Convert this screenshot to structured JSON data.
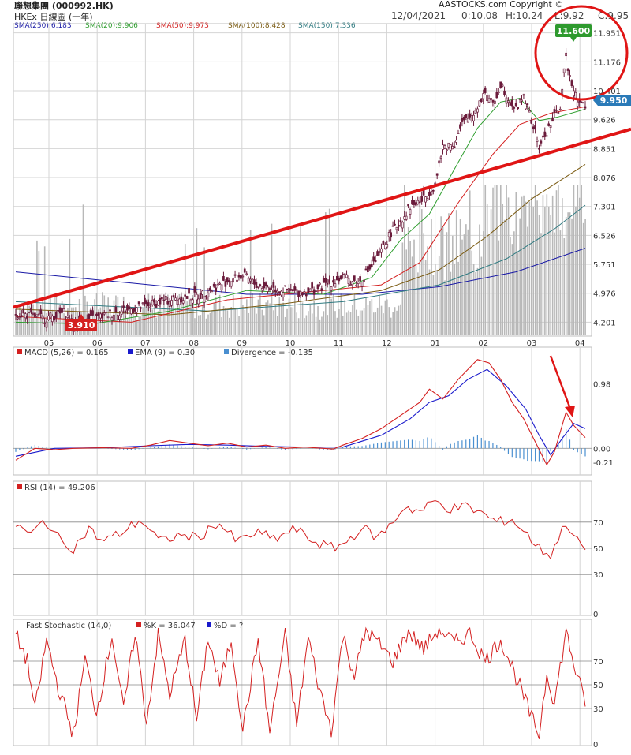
{
  "header": {
    "title": "聯想集團 (000992.HK)",
    "subtitle": "HKEx 日線圖 (一年)",
    "brand": "AASTOCKS.com Copyright ©",
    "date": "12/04/2021",
    "time": "0:10.08",
    "high": "H:10.24",
    "low": "L:9.92",
    "close": "C:9.95"
  },
  "colors": {
    "candle": "#6b1b3b",
    "sma250": "#1a1aa6",
    "sma20": "#2e9e2e",
    "sma50": "#d42020",
    "sma100": "#7a5a10",
    "sma150": "#2e7a80",
    "annotation": "#e01515",
    "volume": "#b8b8b8",
    "macd": "#d42020",
    "ema": "#1a1acc",
    "divergence": "#4a8fd0",
    "grid": "#d4d4d4",
    "badge_high": "#2e9a2e",
    "badge_low": "#d42020",
    "badge_last": "#2a7ab8"
  },
  "chart_data": [
    {
      "type": "candlestick",
      "legend": [
        {
          "label": "SMA(250):6.183",
          "color": "#1a1aa6"
        },
        {
          "label": "SMA(20):9.906",
          "color": "#2e9e2e"
        },
        {
          "label": "SMA(50):9.973",
          "color": "#d42020"
        },
        {
          "label": "SMA(100):8.428",
          "color": "#7a5a10"
        },
        {
          "label": "SMA(150):7.336",
          "color": "#2e7a80"
        }
      ],
      "y_ticks": [
        "11.951",
        "11.176",
        "10.401",
        "9.626",
        "8.851",
        "8.076",
        "7.301",
        "6.526",
        "5.751",
        "4.976",
        "4.201"
      ],
      "ylim": [
        3.85,
        12.05
      ],
      "x_ticks": [
        "05",
        "06",
        "07",
        "08",
        "09",
        "10",
        "11",
        "12",
        "01",
        "02",
        "03",
        "04"
      ],
      "close_path": [
        [
          0,
          4.45
        ],
        [
          15,
          4.3
        ],
        [
          25,
          4.45
        ],
        [
          30,
          4.12
        ],
        [
          40,
          4.3
        ],
        [
          55,
          4.5
        ],
        [
          65,
          4.6
        ],
        [
          75,
          4.75
        ],
        [
          85,
          4.85
        ],
        [
          95,
          4.9
        ],
        [
          110,
          5.3
        ],
        [
          118,
          5.45
        ],
        [
          125,
          5.2
        ],
        [
          135,
          5.1
        ],
        [
          145,
          5.0
        ],
        [
          155,
          5.05
        ],
        [
          165,
          5.3
        ],
        [
          170,
          5.4
        ],
        [
          178,
          5.25
        ],
        [
          188,
          5.9
        ],
        [
          195,
          6.6
        ],
        [
          200,
          6.9
        ],
        [
          205,
          7.3
        ],
        [
          212,
          7.5
        ],
        [
          218,
          7.9
        ],
        [
          222,
          8.9
        ],
        [
          228,
          9.0
        ],
        [
          232,
          9.5
        ],
        [
          238,
          9.8
        ],
        [
          244,
          10.4
        ],
        [
          248,
          10.0
        ],
        [
          252,
          10.6
        ],
        [
          256,
          10.2
        ],
        [
          260,
          9.9
        ],
        [
          264,
          10.3
        ],
        [
          268,
          9.6
        ],
        [
          272,
          8.9
        ],
        [
          276,
          9.3
        ],
        [
          280,
          9.7
        ],
        [
          283,
          10.0
        ],
        [
          286,
          11.3
        ],
        [
          288,
          10.8
        ],
        [
          292,
          10.2
        ],
        [
          296,
          9.95
        ]
      ],
      "sma20": [
        [
          0,
          4.2
        ],
        [
          40,
          4.15
        ],
        [
          80,
          4.5
        ],
        [
          120,
          5.05
        ],
        [
          160,
          4.95
        ],
        [
          185,
          5.4
        ],
        [
          200,
          6.4
        ],
        [
          215,
          7.1
        ],
        [
          228,
          8.3
        ],
        [
          240,
          9.4
        ],
        [
          252,
          10.1
        ],
        [
          262,
          10.2
        ],
        [
          272,
          9.6
        ],
        [
          282,
          9.7
        ],
        [
          296,
          9.906
        ]
      ],
      "sma50": [
        [
          0,
          4.35
        ],
        [
          60,
          4.2
        ],
        [
          110,
          4.8
        ],
        [
          160,
          5.05
        ],
        [
          190,
          5.2
        ],
        [
          210,
          5.8
        ],
        [
          230,
          7.4
        ],
        [
          248,
          8.7
        ],
        [
          262,
          9.5
        ],
        [
          278,
          9.8
        ],
        [
          296,
          9.973
        ]
      ],
      "sma100": [
        [
          0,
          4.55
        ],
        [
          80,
          4.4
        ],
        [
          140,
          4.7
        ],
        [
          190,
          5.05
        ],
        [
          220,
          5.6
        ],
        [
          245,
          6.5
        ],
        [
          268,
          7.5
        ],
        [
          296,
          8.428
        ]
      ],
      "sma150": [
        [
          0,
          4.75
        ],
        [
          100,
          4.5
        ],
        [
          170,
          4.75
        ],
        [
          220,
          5.2
        ],
        [
          255,
          5.9
        ],
        [
          280,
          6.7
        ],
        [
          296,
          7.336
        ]
      ],
      "sma250": [
        [
          0,
          5.55
        ],
        [
          60,
          5.25
        ],
        [
          120,
          4.95
        ],
        [
          180,
          4.95
        ],
        [
          220,
          5.15
        ],
        [
          260,
          5.55
        ],
        [
          296,
          6.183
        ]
      ],
      "trendline": [
        [
          0,
          4.6
        ],
        [
          296,
          8.95
        ]
      ],
      "badges": {
        "high": "11.600",
        "low": "3.910",
        "last": "9.950"
      },
      "annotations": {
        "circle_around_recent_high": true
      }
    },
    {
      "type": "line",
      "title": "MACD (5,26) = 0.165",
      "series": [
        {
          "name": "MACD (5,26) = 0.165",
          "color": "#d42020"
        },
        {
          "name": "EMA (9) = 0.30",
          "color": "#1a1acc"
        },
        {
          "name": "Divergence = -0.135",
          "color": "#4a8fd0"
        }
      ],
      "y_ticks": [
        "0.98",
        "0.00",
        "-0.21"
      ],
      "ylim": [
        -0.38,
        1.42
      ],
      "macd": [
        [
          0,
          -0.18
        ],
        [
          10,
          0.0
        ],
        [
          20,
          -0.02
        ],
        [
          30,
          0.0
        ],
        [
          45,
          0.01
        ],
        [
          60,
          0.0
        ],
        [
          70,
          0.05
        ],
        [
          80,
          0.12
        ],
        [
          90,
          0.08
        ],
        [
          100,
          0.04
        ],
        [
          110,
          0.08
        ],
        [
          120,
          0.02
        ],
        [
          130,
          0.05
        ],
        [
          140,
          0.0
        ],
        [
          150,
          0.02
        ],
        [
          165,
          -0.01
        ],
        [
          170,
          0.05
        ],
        [
          180,
          0.15
        ],
        [
          190,
          0.3
        ],
        [
          200,
          0.5
        ],
        [
          210,
          0.7
        ],
        [
          215,
          0.9
        ],
        [
          222,
          0.75
        ],
        [
          230,
          1.05
        ],
        [
          235,
          1.2
        ],
        [
          240,
          1.35
        ],
        [
          246,
          1.3
        ],
        [
          252,
          1.05
        ],
        [
          258,
          0.7
        ],
        [
          264,
          0.45
        ],
        [
          270,
          0.1
        ],
        [
          276,
          -0.25
        ],
        [
          280,
          -0.05
        ],
        [
          286,
          0.55
        ],
        [
          290,
          0.35
        ],
        [
          296,
          0.165
        ]
      ],
      "ema": [
        [
          0,
          -0.12
        ],
        [
          20,
          0.0
        ],
        [
          45,
          0.01
        ],
        [
          70,
          0.04
        ],
        [
          90,
          0.06
        ],
        [
          110,
          0.05
        ],
        [
          130,
          0.03
        ],
        [
          150,
          0.02
        ],
        [
          170,
          0.02
        ],
        [
          190,
          0.2
        ],
        [
          205,
          0.45
        ],
        [
          215,
          0.7
        ],
        [
          225,
          0.8
        ],
        [
          235,
          1.05
        ],
        [
          245,
          1.2
        ],
        [
          255,
          0.95
        ],
        [
          265,
          0.6
        ],
        [
          272,
          0.2
        ],
        [
          278,
          -0.1
        ],
        [
          284,
          0.15
        ],
        [
          290,
          0.38
        ],
        [
          296,
          0.3
        ]
      ],
      "divergence_markers": [
        {
          "x": 205,
          "value": 0.2
        },
        {
          "x": 215,
          "value": 0.25
        },
        {
          "x": 276,
          "value": -0.25
        },
        {
          "x": 286,
          "value": 0.3
        }
      ]
    },
    {
      "type": "line",
      "title": "RSI (14) = 49.206",
      "y_ticks": [
        "70",
        "50",
        "30",
        "0"
      ],
      "ylim": [
        0,
        100
      ],
      "values": [
        [
          0,
          68
        ],
        [
          8,
          60
        ],
        [
          15,
          72
        ],
        [
          22,
          58
        ],
        [
          30,
          50
        ],
        [
          38,
          65
        ],
        [
          45,
          55
        ],
        [
          55,
          62
        ],
        [
          65,
          72
        ],
        [
          75,
          55
        ],
        [
          85,
          60
        ],
        [
          95,
          58
        ],
        [
          105,
          70
        ],
        [
          115,
          55
        ],
        [
          125,
          62
        ],
        [
          135,
          57
        ],
        [
          145,
          65
        ],
        [
          155,
          55
        ],
        [
          165,
          50
        ],
        [
          172,
          55
        ],
        [
          180,
          66
        ],
        [
          188,
          58
        ],
        [
          196,
          70
        ],
        [
          202,
          82
        ],
        [
          210,
          78
        ],
        [
          218,
          86
        ],
        [
          226,
          80
        ],
        [
          234,
          82
        ],
        [
          242,
          77
        ],
        [
          250,
          70
        ],
        [
          258,
          72
        ],
        [
          266,
          60
        ],
        [
          272,
          50
        ],
        [
          278,
          45
        ],
        [
          286,
          70
        ],
        [
          292,
          55
        ],
        [
          296,
          49.2
        ]
      ]
    },
    {
      "type": "line",
      "title": "Fast Stochastic (14,0)",
      "series": [
        {
          "name": "%K = 36.047",
          "color": "#d42020"
        },
        {
          "name": "%D = ?",
          "color": "#1a1acc"
        }
      ],
      "y_ticks": [
        "70",
        "50",
        "30",
        "0"
      ],
      "ylim": [
        0,
        100
      ],
      "values": [
        [
          0,
          92
        ],
        [
          6,
          70
        ],
        [
          10,
          28
        ],
        [
          16,
          88
        ],
        [
          22,
          48
        ],
        [
          30,
          8
        ],
        [
          36,
          72
        ],
        [
          42,
          26
        ],
        [
          50,
          92
        ],
        [
          56,
          28
        ],
        [
          62,
          95
        ],
        [
          68,
          18
        ],
        [
          74,
          92
        ],
        [
          80,
          42
        ],
        [
          88,
          88
        ],
        [
          94,
          20
        ],
        [
          100,
          90
        ],
        [
          106,
          50
        ],
        [
          112,
          88
        ],
        [
          118,
          12
        ],
        [
          126,
          88
        ],
        [
          132,
          10
        ],
        [
          140,
          92
        ],
        [
          146,
          16
        ],
        [
          152,
          90
        ],
        [
          158,
          45
        ],
        [
          164,
          12
        ],
        [
          170,
          92
        ],
        [
          176,
          58
        ],
        [
          182,
          96
        ],
        [
          188,
          86
        ],
        [
          196,
          70
        ],
        [
          204,
          95
        ],
        [
          212,
          80
        ],
        [
          220,
          98
        ],
        [
          228,
          85
        ],
        [
          236,
          94
        ],
        [
          244,
          70
        ],
        [
          252,
          88
        ],
        [
          258,
          65
        ],
        [
          264,
          40
        ],
        [
          268,
          22
        ],
        [
          272,
          8
        ],
        [
          276,
          60
        ],
        [
          280,
          35
        ],
        [
          286,
          95
        ],
        [
          292,
          55
        ],
        [
          296,
          36.0
        ]
      ]
    }
  ]
}
